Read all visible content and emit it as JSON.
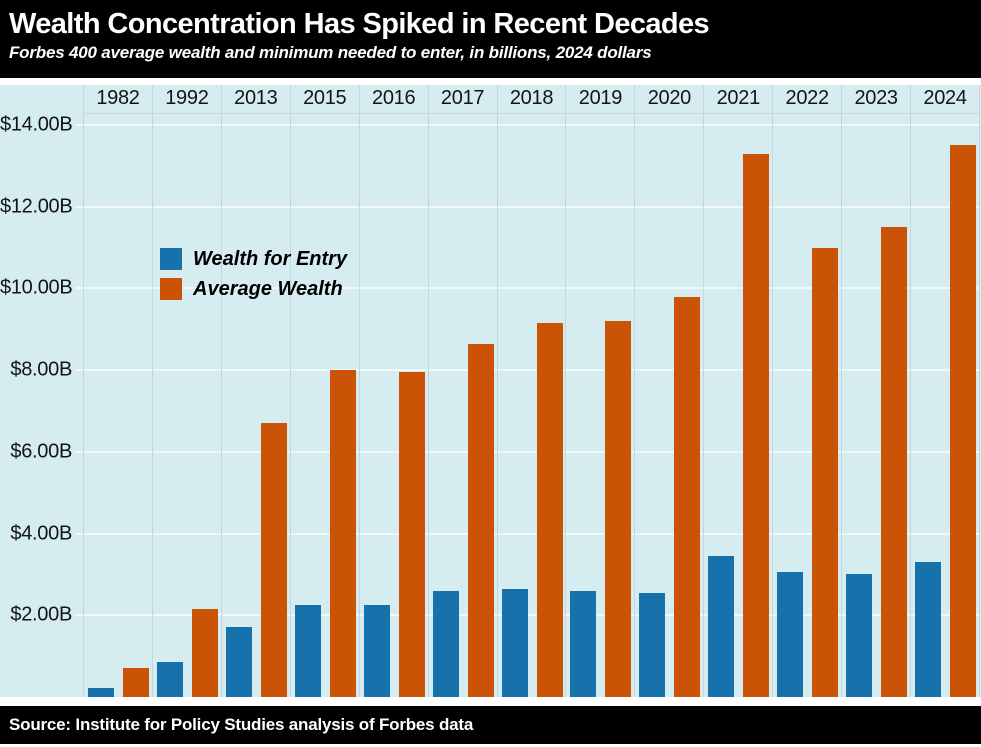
{
  "header": {
    "title": "Wealth Concentration Has Spiked in Recent Decades",
    "subtitle": "Forbes 400 average wealth and minimum needed to enter, in billions, 2024 dollars"
  },
  "footer": {
    "source": "Source: Institute for Policy Studies analysis of Forbes data"
  },
  "legend": {
    "items": [
      {
        "label": "Wealth for Entry",
        "color": "#1772ab"
      },
      {
        "label": "Average Wealth",
        "color": "#cb5305"
      }
    ]
  },
  "colors": {
    "header_background": "#000000",
    "header_text": "#ffffff",
    "plot_background": "#d5edf1",
    "entry_blue": "#1772ab",
    "average_orange": "#cb5305",
    "gridline": "#f1f8f8",
    "column_separator": "#c6d6da",
    "axis_text": "#141414"
  },
  "chart_data": {
    "type": "bar",
    "title": "Wealth Concentration Has Spiked in Recent Decades",
    "subtitle": "Forbes 400 average wealth and minimum needed to enter, in billions, 2024 dollars",
    "categories": [
      "1982",
      "1992",
      "2013",
      "2015",
      "2016",
      "2017",
      "2018",
      "2019",
      "2020",
      "2021",
      "2022",
      "2023",
      "2024"
    ],
    "series": [
      {
        "name": "Wealth for Entry",
        "color": "#1772ab",
        "values": [
          0.22,
          0.85,
          1.72,
          2.25,
          2.25,
          2.6,
          2.65,
          2.6,
          2.55,
          3.45,
          3.05,
          3.0,
          3.3
        ]
      },
      {
        "name": "Average Wealth",
        "color": "#cb5305",
        "values": [
          0.7,
          2.16,
          6.7,
          8.0,
          7.95,
          8.65,
          9.15,
          9.2,
          9.8,
          13.3,
          11.0,
          11.5,
          13.5
        ]
      }
    ],
    "unit": "billions, 2024 dollars",
    "ylim": [
      0,
      14.25
    ],
    "y_ticks": [
      2,
      4,
      6,
      8,
      10,
      12,
      14
    ],
    "y_tick_labels": [
      "$2.00B",
      "$4.00B",
      "$6.00B",
      "$8.00B",
      "$10.00B",
      "$12.00B",
      "$14.00B"
    ],
    "x_axis_position": "top",
    "grid": true,
    "legend_position": "inside-upper-left"
  }
}
